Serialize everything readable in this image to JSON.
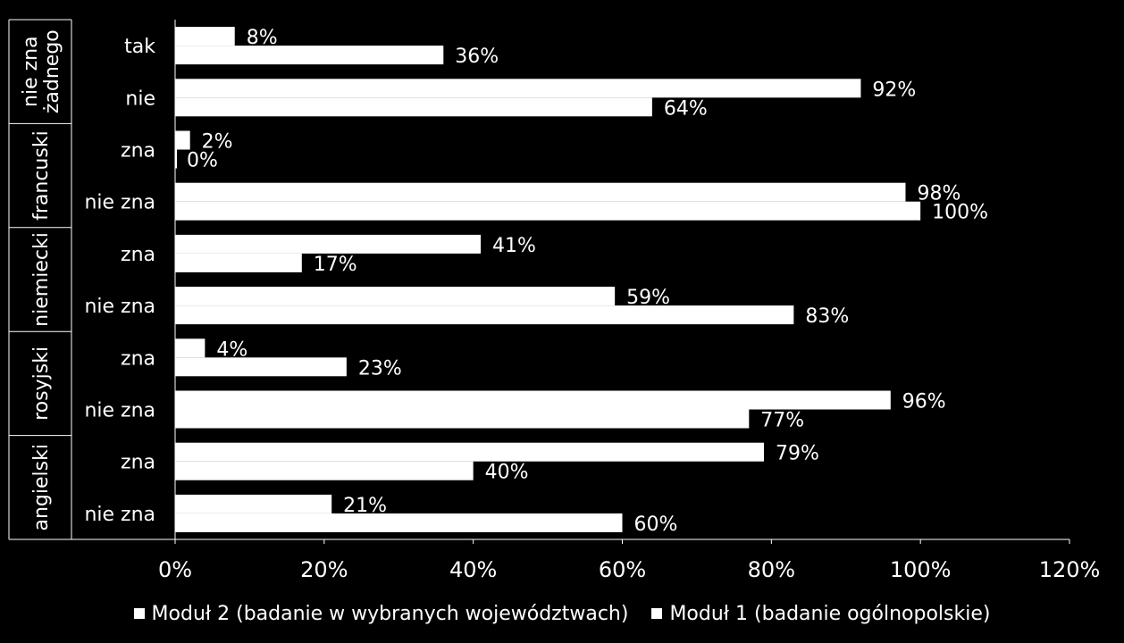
{
  "chart_data": {
    "type": "bar",
    "orientation": "horizontal",
    "xlim": [
      0,
      120
    ],
    "x_ticks": [
      "0%",
      "20%",
      "40%",
      "60%",
      "80%",
      "100%",
      "120%"
    ],
    "groups": [
      {
        "label": "nie zna żadnego",
        "label_lines": [
          "nie zna",
          "żadnego"
        ],
        "categories": [
          "tak",
          "nie"
        ]
      },
      {
        "label": "francuski",
        "label_lines": [
          "francuski"
        ],
        "categories": [
          "zna",
          "nie zna"
        ]
      },
      {
        "label": "niemiecki",
        "label_lines": [
          "niemiecki"
        ],
        "categories": [
          "zna",
          "nie zna"
        ]
      },
      {
        "label": "rosyjski",
        "label_lines": [
          "rosyjski"
        ],
        "categories": [
          "zna",
          "nie zna"
        ]
      },
      {
        "label": "angielski",
        "label_lines": [
          "angielski"
        ],
        "categories": [
          "zna",
          "nie zna"
        ]
      }
    ],
    "series": [
      {
        "name": "Moduł 2 (badanie w wybranych województwach)",
        "color": "#ffffff",
        "values": [
          8,
          92,
          2,
          98,
          41,
          59,
          4,
          96,
          79,
          21
        ]
      },
      {
        "name": "Moduł 1 (badanie ogólnopolskie)",
        "color": "#ffffff",
        "values": [
          36,
          64,
          0,
          100,
          17,
          83,
          23,
          77,
          40,
          60
        ]
      }
    ],
    "value_suffix": "%",
    "grid": false,
    "legend_position": "bottom"
  }
}
